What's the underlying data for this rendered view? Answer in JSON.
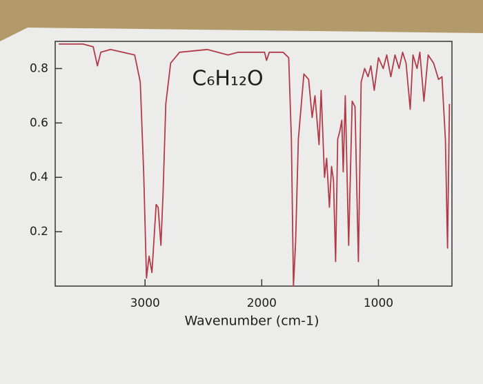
{
  "chart_data": {
    "type": "line",
    "title": "C₆H₁₂O",
    "x_label": "Wavenumber (cm-1)",
    "color": "#b23a48",
    "xlim": [
      3770,
      370
    ],
    "ylim": [
      0,
      0.9
    ],
    "xticks": [
      3000,
      2000,
      1000
    ],
    "yticks": [
      0.2,
      0.4,
      0.6,
      0.8
    ],
    "x": [
      3740,
      3532,
      3444,
      3408,
      3379,
      3296,
      3089,
      3041,
      3012,
      2988,
      2965,
      2941,
      2905,
      2888,
      2864,
      2846,
      2822,
      2781,
      2704,
      2467,
      2290,
      2201,
      2053,
      1976,
      1959,
      1935,
      1817,
      1769,
      1746,
      1728,
      1710,
      1686,
      1639,
      1598,
      1568,
      1544,
      1509,
      1491,
      1462,
      1444,
      1420,
      1402,
      1385,
      1367,
      1349,
      1331,
      1314,
      1302,
      1284,
      1255,
      1225,
      1201,
      1172,
      1148,
      1118,
      1089,
      1065,
      1036,
      1000,
      959,
      929,
      894,
      858,
      823,
      793,
      763,
      728,
      704,
      669,
      645,
      610,
      574,
      527,
      485,
      456,
      426,
      408,
      391
    ],
    "values": [
      0.89,
      0.89,
      0.88,
      0.81,
      0.86,
      0.87,
      0.85,
      0.75,
      0.42,
      0.03,
      0.11,
      0.05,
      0.3,
      0.29,
      0.15,
      0.34,
      0.67,
      0.82,
      0.86,
      0.87,
      0.85,
      0.86,
      0.86,
      0.86,
      0.83,
      0.86,
      0.86,
      0.84,
      0.54,
      0.0,
      0.16,
      0.54,
      0.78,
      0.76,
      0.62,
      0.7,
      0.52,
      0.72,
      0.4,
      0.47,
      0.29,
      0.44,
      0.39,
      0.09,
      0.54,
      0.57,
      0.61,
      0.42,
      0.7,
      0.15,
      0.68,
      0.66,
      0.09,
      0.75,
      0.8,
      0.77,
      0.81,
      0.72,
      0.84,
      0.8,
      0.85,
      0.77,
      0.85,
      0.8,
      0.86,
      0.82,
      0.65,
      0.85,
      0.8,
      0.86,
      0.68,
      0.85,
      0.82,
      0.76,
      0.77,
      0.54,
      0.14,
      0.67
    ]
  }
}
